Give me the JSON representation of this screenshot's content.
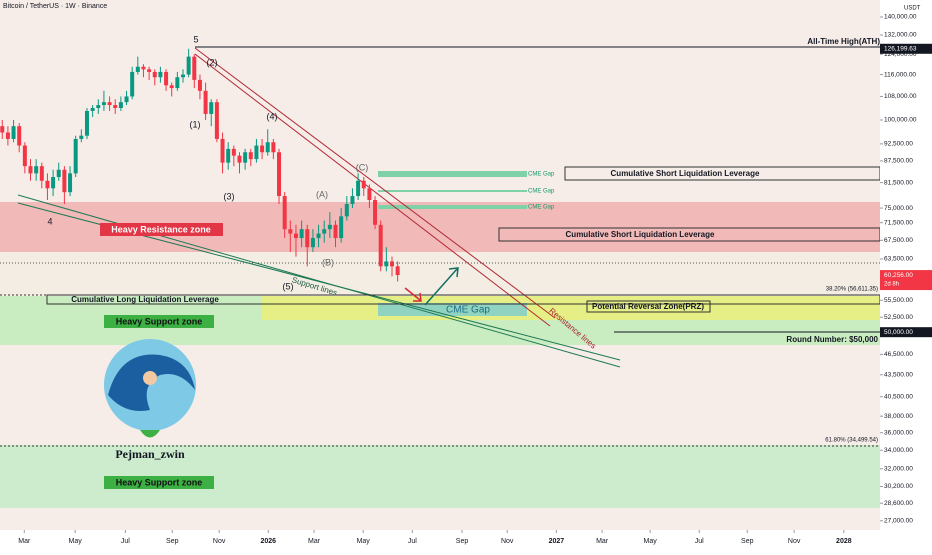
{
  "chart_data": {
    "type": "candlestick",
    "title": "Bitcoin / TetherUS · 1W · Binance",
    "currency": "USDT",
    "log_scale": true,
    "up_color": "#089981",
    "down_color": "#f23645",
    "x": [
      0,
      1,
      2,
      3,
      4,
      5,
      6,
      7,
      8,
      9,
      10,
      11,
      12,
      13,
      14,
      15,
      16,
      17,
      18,
      19,
      20,
      21,
      22,
      23,
      24,
      25,
      26,
      27,
      28,
      29,
      30,
      31,
      32,
      33,
      34,
      35,
      36,
      37,
      38,
      39,
      40,
      41,
      42,
      43,
      44,
      45,
      46,
      47,
      48,
      49,
      50,
      51,
      52,
      53,
      54,
      55,
      56,
      57,
      58,
      59,
      60,
      61,
      62,
      63,
      64,
      65,
      66,
      67,
      68,
      69,
      70
    ],
    "open": [
      98000,
      96000,
      94000,
      98000,
      92000,
      86000,
      84000,
      86000,
      82000,
      80000,
      83000,
      85000,
      79000,
      84000,
      94000,
      95000,
      103000,
      104000,
      105000,
      106000,
      105000,
      104000,
      106000,
      108000,
      117000,
      119000,
      118000,
      117000,
      115000,
      117000,
      112000,
      111000,
      115000,
      116000,
      123000,
      114000,
      110000,
      102000,
      106000,
      94000,
      87000,
      91000,
      89000,
      87000,
      90000,
      88000,
      92000,
      90000,
      93000,
      90000,
      78000,
      70000,
      69000,
      68000,
      70000,
      66000,
      68000,
      69000,
      70000,
      71000,
      68000,
      73000,
      76000,
      78000,
      82000,
      80000,
      77000,
      71000,
      62000,
      63000,
      62000
    ],
    "high": [
      100000,
      98000,
      100000,
      99000,
      93000,
      88000,
      88000,
      87000,
      84000,
      85000,
      87000,
      86000,
      86000,
      95000,
      97000,
      104000,
      105000,
      107000,
      110000,
      108000,
      107000,
      108000,
      110000,
      119000,
      123000,
      120000,
      119000,
      118000,
      119000,
      118000,
      113000,
      117000,
      118000,
      126199.63,
      124000,
      116000,
      113000,
      107000,
      107000,
      96000,
      93000,
      92000,
      90000,
      91000,
      91000,
      94000,
      94000,
      97000,
      94000,
      91000,
      79000,
      72000,
      71000,
      72000,
      71000,
      70000,
      71000,
      72000,
      74000,
      72000,
      75000,
      78000,
      80000,
      84000,
      83000,
      81000,
      78000,
      72000,
      66000,
      64000,
      63000
    ],
    "low": [
      94000,
      92000,
      93000,
      90000,
      84000,
      82000,
      82000,
      80000,
      77000,
      78000,
      82000,
      76000,
      78000,
      83000,
      93000,
      94000,
      101000,
      102000,
      103000,
      103000,
      102000,
      103000,
      105000,
      107000,
      116000,
      115000,
      114000,
      112000,
      113000,
      110000,
      108000,
      110000,
      113000,
      115000,
      111000,
      107000,
      100000,
      98000,
      93000,
      84000,
      85000,
      86000,
      84000,
      85000,
      86000,
      87000,
      88000,
      89000,
      88000,
      76000,
      68000,
      65000,
      64000,
      66000,
      62000,
      65000,
      66000,
      67000,
      68000,
      66000,
      67000,
      72000,
      75000,
      77000,
      78000,
      75000,
      70000,
      61000,
      61000,
      60000,
      59000
    ],
    "close": [
      96000,
      94000,
      98000,
      92000,
      86000,
      84000,
      86000,
      82000,
      80000,
      83000,
      85000,
      79000,
      84000,
      94000,
      95000,
      103000,
      104000,
      105000,
      106000,
      105000,
      104000,
      106000,
      108000,
      117000,
      119000,
      118000,
      117000,
      115000,
      117000,
      112000,
      111000,
      115000,
      116000,
      123000,
      114000,
      110000,
      102000,
      106000,
      94000,
      87000,
      91000,
      89000,
      87000,
      90000,
      88000,
      92000,
      90000,
      93000,
      90000,
      78000,
      70000,
      69000,
      68000,
      70000,
      66000,
      68000,
      69000,
      70000,
      71000,
      68000,
      73000,
      76000,
      78000,
      82000,
      80000,
      77000,
      71000,
      62000,
      63000,
      62000,
      60256
    ],
    "ylim": [
      26200,
      148000
    ],
    "yticks": [
      {
        "value": 140000,
        "label": "140,000.00"
      },
      {
        "value": 132000,
        "label": "132,000.00"
      },
      {
        "value": 124000,
        "label": "124,000.00"
      },
      {
        "value": 116000,
        "label": "116,000.00"
      },
      {
        "value": 108000,
        "label": "108,000.00"
      },
      {
        "value": 100000,
        "label": "100,000.00"
      },
      {
        "value": 92500,
        "label": "92,500.00"
      },
      {
        "value": 87500,
        "label": "87,500.00"
      },
      {
        "value": 81500,
        "label": "81,500.00"
      },
      {
        "value": 75000,
        "label": "75,000.00"
      },
      {
        "value": 71500,
        "label": "71,500.00"
      },
      {
        "value": 67500,
        "label": "67,500.00"
      },
      {
        "value": 63500,
        "label": "63,500.00"
      },
      {
        "value": 55500,
        "label": "55,500.00"
      },
      {
        "value": 52500,
        "label": "52,500.00"
      },
      {
        "value": 46500,
        "label": "46,500.00"
      },
      {
        "value": 43500,
        "label": "43,500.00"
      },
      {
        "value": 40500,
        "label": "40,500.00"
      },
      {
        "value": 38000,
        "label": "38,000.00"
      },
      {
        "value": 36000,
        "label": "36,000.00"
      },
      {
        "value": 34000,
        "label": "34,000.00"
      },
      {
        "value": 32000,
        "label": "32,000.00"
      },
      {
        "value": 30200,
        "label": "30,200.00"
      },
      {
        "value": 28600,
        "label": "28,600.00"
      },
      {
        "value": 27000,
        "label": "27,000.00"
      }
    ],
    "xlim": [
      -0.4,
      155.4
    ],
    "xticks": [
      {
        "value": 3.9,
        "label": "Mar"
      },
      {
        "value": 12.9,
        "label": "May"
      },
      {
        "value": 21.8,
        "label": "Jul"
      },
      {
        "value": 30.1,
        "label": "Sep"
      },
      {
        "value": 38.4,
        "label": "Nov"
      },
      {
        "value": 47.1,
        "label": "2026"
      },
      {
        "value": 55.2,
        "label": "Mar"
      },
      {
        "value": 63.9,
        "label": "May"
      },
      {
        "value": 72.6,
        "label": "Jul"
      },
      {
        "value": 81.4,
        "label": "Sep"
      },
      {
        "value": 89.4,
        "label": "Nov"
      },
      {
        "value": 98.1,
        "label": "2027"
      },
      {
        "value": 106.2,
        "label": "Mar"
      },
      {
        "value": 114.7,
        "label": "May"
      },
      {
        "value": 123.4,
        "label": "Jul"
      },
      {
        "value": 131.9,
        "label": "Sep"
      },
      {
        "value": 140.2,
        "label": "Nov"
      },
      {
        "value": 149,
        "label": "2028"
      }
    ],
    "price_labels": [
      {
        "value": 126199.63,
        "label": "126,199.63"
      },
      {
        "value": 60256,
        "label": "60,256.00",
        "sub": "2d 8h"
      },
      {
        "value": 50000,
        "label": "50,000.00"
      }
    ],
    "annotations": [
      "All-Time High(ATH)",
      "Cumulative Short Liquidation Leverage",
      "Cumulative Short Liquidation Leverage",
      "CME Gap",
      "CME Gap",
      "CME Gap",
      "CME Gap",
      "Heavy Resistance zone",
      "Heavy Support zone",
      "Heavy Support zone",
      "Cumulative Long Liquidation Leverage",
      "Potential Reversal Zone(PRZ)",
      "Round Number: $50,000",
      "38.20% (56,611.35)",
      "61.80% (34,499.54)",
      "Support lines",
      "Resistance lines",
      "Pejman_zwin"
    ],
    "wave_labels": [
      "5",
      "(2)",
      "(1)",
      "(4)",
      "(3)",
      "(5)",
      "(A)",
      "(B)",
      "(C)",
      "4"
    ]
  }
}
